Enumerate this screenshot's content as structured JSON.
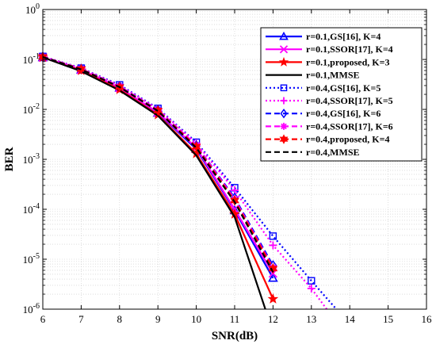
{
  "chart_data": {
    "type": "line",
    "title": "",
    "xlabel": "SNR(dB)",
    "ylabel": "BER",
    "xlim": [
      6,
      16
    ],
    "ylim": [
      1e-06,
      1
    ],
    "yscale": "log",
    "grid": true,
    "legend_position": "top-right",
    "xticks": [
      "6",
      "7",
      "8",
      "9",
      "10",
      "11",
      "12",
      "13",
      "14",
      "15",
      "16"
    ],
    "yticks": [
      {
        "base": "10",
        "exp": "-6"
      },
      {
        "base": "10",
        "exp": "-5"
      },
      {
        "base": "10",
        "exp": "-4"
      },
      {
        "base": "10",
        "exp": "-3"
      },
      {
        "base": "10",
        "exp": "-2"
      },
      {
        "base": "10",
        "exp": "-1"
      },
      {
        "base": "10",
        "exp": "0"
      }
    ],
    "series": [
      {
        "name": "r=0.1,GS[16], K=4",
        "color": "#0000ff",
        "dash": "solid",
        "marker": "triangle",
        "x": [
          6,
          7,
          8,
          9,
          10,
          11,
          12
        ],
        "y": [
          0.11,
          0.062,
          0.027,
          0.0085,
          0.0016,
          9.5e-05,
          4.2e-06
        ]
      },
      {
        "name": "r=0.1,SSOR[17], K=4",
        "color": "#ff00ff",
        "dash": "solid",
        "marker": "x",
        "x": [
          6,
          7,
          8,
          9,
          10,
          11,
          12
        ],
        "y": [
          0.11,
          0.062,
          0.027,
          0.0087,
          0.0017,
          0.0001,
          5.2e-06
        ]
      },
      {
        "name": "r=0.1,proposed, K=3",
        "color": "#ff0000",
        "dash": "solid",
        "marker": "star",
        "x": [
          6,
          7,
          8,
          9,
          10,
          11,
          12
        ],
        "y": [
          0.11,
          0.06,
          0.025,
          0.0078,
          0.0013,
          8e-05,
          1.6e-06
        ]
      },
      {
        "name": "r=0.1,MMSE",
        "color": "#000000",
        "dash": "solid",
        "marker": "none",
        "x": [
          6,
          7,
          8,
          9,
          10,
          11,
          11.8
        ],
        "y": [
          0.11,
          0.058,
          0.024,
          0.0075,
          0.0012,
          7e-05,
          1e-06
        ]
      },
      {
        "name": "r=0.4,GS[16], K=5",
        "color": "#0000ff",
        "dash": "dotted",
        "marker": "square",
        "x": [
          6,
          7,
          8,
          9,
          10,
          11,
          12,
          13,
          13.65
        ],
        "y": [
          0.115,
          0.067,
          0.031,
          0.0105,
          0.0022,
          0.00027,
          2.9e-05,
          3.7e-06,
          1e-06
        ]
      },
      {
        "name": "r=0.4,SSOR[17], K=5",
        "color": "#ff00ff",
        "dash": "dotted",
        "marker": "plus",
        "x": [
          6,
          7,
          8,
          9,
          10,
          11,
          12,
          13,
          13.4
        ],
        "y": [
          0.115,
          0.066,
          0.03,
          0.0102,
          0.0021,
          0.00024,
          1.9e-05,
          2.6e-06,
          1e-06
        ]
      },
      {
        "name": "r=0.4,GS[16], K=6",
        "color": "#0000ff",
        "dash": "dashed",
        "marker": "diamond",
        "x": [
          6,
          7,
          8,
          9,
          10,
          11,
          12
        ],
        "y": [
          0.113,
          0.065,
          0.029,
          0.0098,
          0.0019,
          0.00017,
          7.5e-06
        ]
      },
      {
        "name": "r=0.4,SSOR[17], K=6",
        "color": "#ff00ff",
        "dash": "dashed",
        "marker": "asterisk",
        "x": [
          6,
          7,
          8,
          9,
          10,
          11,
          12
        ],
        "y": [
          0.113,
          0.065,
          0.029,
          0.0097,
          0.0019,
          0.00016,
          6.8e-06
        ]
      },
      {
        "name": "r=0.4,proposed, K=4",
        "color": "#ff0000",
        "dash": "dashed",
        "marker": "hexagram",
        "x": [
          6,
          7,
          8,
          9,
          10,
          11,
          12
        ],
        "y": [
          0.112,
          0.064,
          0.028,
          0.0095,
          0.0018,
          0.00015,
          6.5e-06
        ]
      },
      {
        "name": "r=0.4,MMSE",
        "color": "#000000",
        "dash": "dashed",
        "marker": "none",
        "x": [
          6,
          7,
          8,
          9,
          10,
          11,
          12
        ],
        "y": [
          0.112,
          0.063,
          0.028,
          0.0093,
          0.0017,
          0.00014,
          5.5e-06
        ]
      }
    ]
  }
}
